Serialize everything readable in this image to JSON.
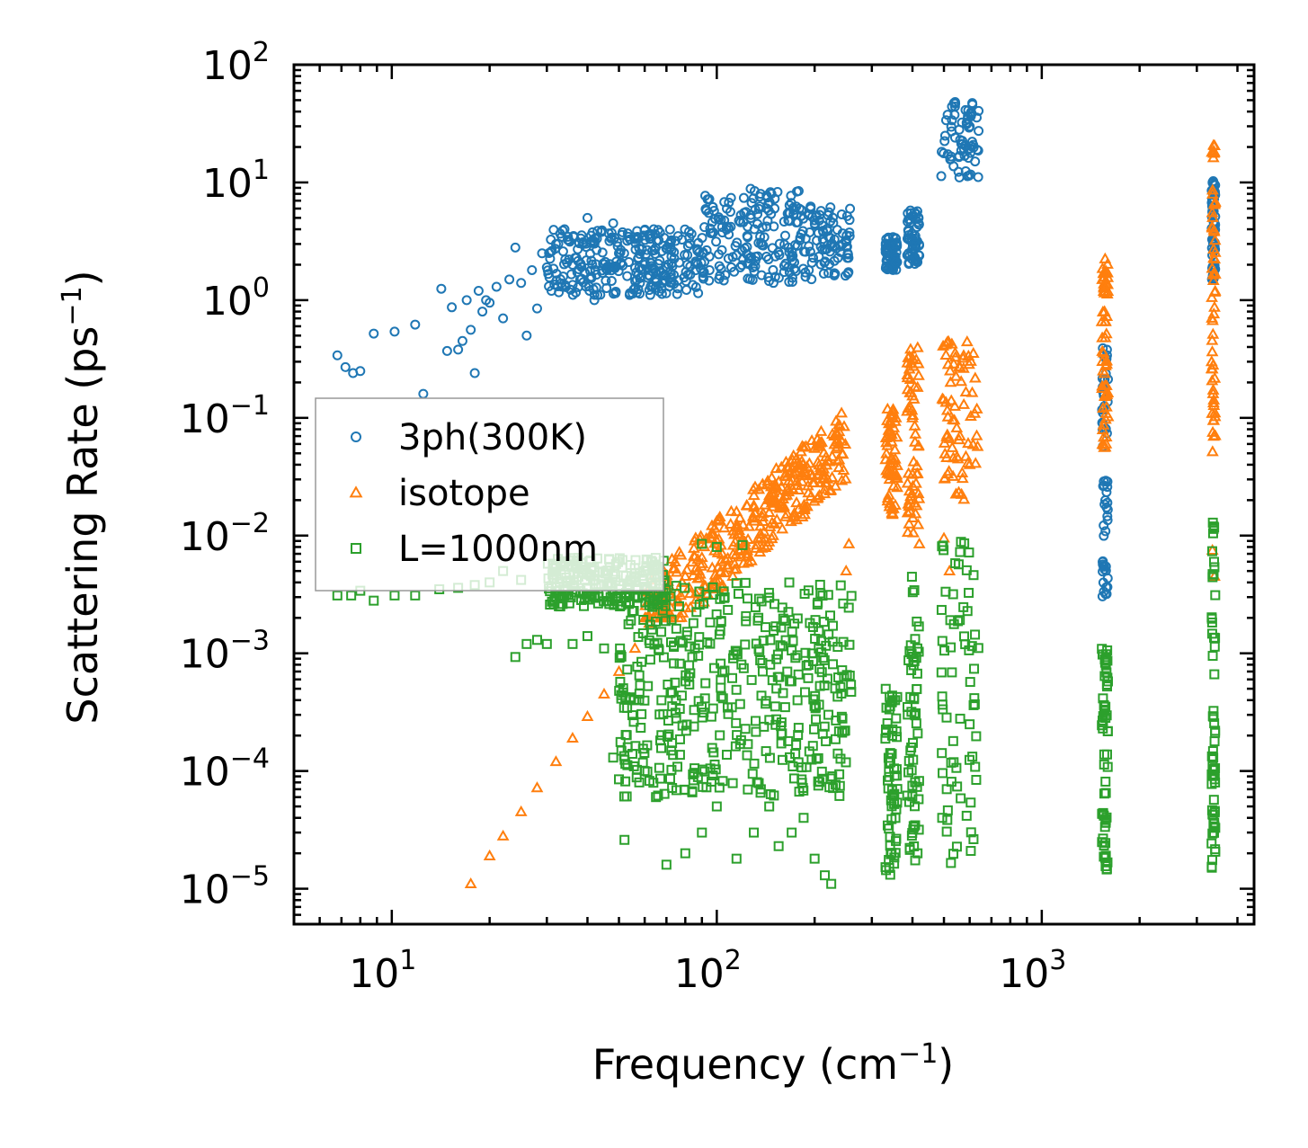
{
  "chart_data": {
    "type": "scatter",
    "title": "",
    "xlabel": "Frequency (cm",
    "xlabel_sup": "−1",
    "xlabel_end": ")",
    "ylabel": "Scattering Rate (ps",
    "ylabel_sup": "−1",
    "ylabel_end": ")",
    "xscale": "log",
    "yscale": "log",
    "xlim": [
      5,
      4500
    ],
    "ylim": [
      5e-06,
      100
    ],
    "x_ticks": [
      {
        "value": 10,
        "base": "10",
        "exp": "1"
      },
      {
        "value": 100,
        "base": "10",
        "exp": "2"
      },
      {
        "value": 1000,
        "base": "10",
        "exp": "3"
      }
    ],
    "y_ticks": [
      {
        "value": 100,
        "base": "10",
        "exp": "2"
      },
      {
        "value": 10,
        "base": "10",
        "exp": "1"
      },
      {
        "value": 1,
        "base": "10",
        "exp": "0"
      },
      {
        "value": 0.1,
        "base": "10",
        "exp": "−1"
      },
      {
        "value": 0.01,
        "base": "10",
        "exp": "−2"
      },
      {
        "value": 0.001,
        "base": "10",
        "exp": "−3"
      },
      {
        "value": 0.0001,
        "base": "10",
        "exp": "−4"
      },
      {
        "value": 1e-05,
        "base": "10",
        "exp": "−5"
      }
    ],
    "legend_position": "center-left",
    "series": [
      {
        "name": "3ph(300K)",
        "marker": "circle",
        "color": "#1f77b4",
        "points": [
          [
            6.8,
            0.34
          ],
          [
            7.2,
            0.27
          ],
          [
            7.6,
            0.24
          ],
          [
            8.0,
            0.25
          ],
          [
            8.8,
            0.52
          ],
          [
            10.2,
            0.54
          ],
          [
            11.8,
            0.62
          ],
          [
            12.5,
            0.16
          ],
          [
            14.2,
            1.25
          ],
          [
            14.8,
            0.37
          ],
          [
            15.3,
            0.87
          ],
          [
            16.0,
            0.38
          ],
          [
            16.5,
            0.45
          ],
          [
            17.0,
            1.0
          ],
          [
            17.5,
            0.56
          ],
          [
            18.0,
            0.24
          ],
          [
            18.5,
            1.2
          ],
          [
            19.0,
            0.8
          ],
          [
            19.5,
            1.0
          ],
          [
            20.0,
            0.95
          ],
          [
            21.0,
            1.3
          ],
          [
            22.0,
            0.7
          ],
          [
            23.0,
            1.5
          ],
          [
            24.0,
            2.8
          ],
          [
            25.0,
            1.4
          ],
          [
            26.0,
            0.5
          ],
          [
            27.0,
            1.8
          ],
          [
            28.0,
            0.85
          ],
          [
            29.0,
            2.5
          ],
          [
            30.0,
            1.9
          ],
          [
            31.0,
            1.2
          ],
          [
            32.0,
            3.0
          ],
          [
            34.0,
            4.0
          ],
          [
            36.0,
            2.0
          ],
          [
            38.0,
            1.5
          ],
          [
            40.0,
            5.0
          ],
          [
            42.0,
            1.0
          ],
          [
            44.0,
            3.8
          ],
          [
            46.0,
            1.8
          ],
          [
            48.0,
            4.5
          ],
          [
            50.0,
            2.5
          ],
          [
            53.0,
            1.6
          ],
          [
            56.0,
            3.3
          ],
          [
            60.0,
            2.0
          ],
          [
            64.0,
            4.0
          ],
          [
            68.0,
            1.4
          ],
          [
            72.0,
            2.8
          ],
          [
            76.0,
            3.5
          ]
        ],
        "bands": [
          {
            "x": [
              30,
              90
            ],
            "y": [
              1.1,
              4.0
            ]
          },
          {
            "x": [
              90,
              180
            ],
            "y": [
              1.4,
              9.0
            ]
          },
          {
            "x": [
              180,
              260
            ],
            "y": [
              1.5,
              6.5
            ]
          },
          {
            "x": [
              330,
              360
            ],
            "y": [
              1.8,
              3.5
            ]
          },
          {
            "x": [
              385,
              420
            ],
            "y": [
              2.0,
              5.8
            ]
          },
          {
            "x": [
              490,
              640
            ],
            "y": [
              11,
              55
            ]
          },
          {
            "x": [
              1530,
              1600
            ],
            "y": [
              0.003,
              0.4
            ]
          },
          {
            "x": [
              3330,
              3420
            ],
            "y": [
              1.5,
              11
            ]
          }
        ]
      },
      {
        "name": "isotope",
        "marker": "triangle",
        "color": "#ff7f0e",
        "points": [
          [
            17.5,
            1.1e-05
          ],
          [
            20.0,
            1.9e-05
          ],
          [
            22.0,
            2.8e-05
          ],
          [
            25.0,
            4.5e-05
          ],
          [
            28.0,
            7.2e-05
          ],
          [
            32.0,
            0.00012
          ],
          [
            36.0,
            0.00019
          ],
          [
            40.0,
            0.00029
          ],
          [
            45.0,
            0.00045
          ],
          [
            50.0,
            0.0007
          ],
          [
            56.0,
            0.0011
          ],
          [
            62.0,
            0.0018
          ],
          [
            70.0,
            0.0028
          ],
          [
            80.0,
            0.0045
          ],
          [
            90.0,
            0.0065
          ],
          [
            100.0,
            0.009
          ],
          [
            115.0,
            0.012
          ],
          [
            130.0,
            0.018
          ],
          [
            150.0,
            0.025
          ],
          [
            175.0,
            0.035
          ],
          [
            200.0,
            0.055
          ],
          [
            230.0,
            0.07
          ],
          [
            250.0,
            0.005
          ],
          [
            255.0,
            0.0085
          ],
          [
            340.0,
            0.03
          ],
          [
            400.0,
            0.1
          ],
          [
            420.0,
            0.0085
          ],
          [
            500.0,
            0.0095
          ],
          [
            520.0,
            0.005
          ],
          [
            560.0,
            0.07
          ],
          [
            600.0,
            0.04
          ],
          [
            1560.0,
            0.8
          ],
          [
            3350.0,
            0.0075
          ],
          [
            3400.0,
            0.0045
          ]
        ],
        "bands": [
          {
            "x": [
              60,
              250
            ],
            "y": [
              0.002,
              0.11
            ]
          },
          {
            "x": [
              330,
              360
            ],
            "y": [
              0.015,
              0.12
            ]
          },
          {
            "x": [
              385,
              420
            ],
            "y": [
              0.01,
              0.4
            ]
          },
          {
            "x": [
              490,
              640
            ],
            "y": [
              0.02,
              0.5
            ]
          },
          {
            "x": [
              1530,
              1600
            ],
            "y": [
              0.05,
              2.3
            ]
          },
          {
            "x": [
              3330,
              3420
            ],
            "y": [
              0.05,
              21
            ]
          }
        ]
      },
      {
        "name": "L=1000nm",
        "marker": "square",
        "color": "#2ca02c",
        "points": [
          [
            6.8,
            0.0031
          ],
          [
            7.5,
            0.0031
          ],
          [
            8.0,
            0.0034
          ],
          [
            8.8,
            0.0028
          ],
          [
            10.2,
            0.0031
          ],
          [
            11.8,
            0.0031
          ],
          [
            14.0,
            0.0035
          ],
          [
            16.0,
            0.0036
          ],
          [
            18.0,
            0.0038
          ],
          [
            20.0,
            0.004
          ],
          [
            22.0,
            0.005
          ],
          [
            25.0,
            0.0042
          ],
          [
            24.0,
            0.00093
          ],
          [
            26.0,
            0.0012
          ],
          [
            28.0,
            0.0013
          ],
          [
            30.0,
            0.0012
          ],
          [
            33.0,
            0.0025
          ],
          [
            36.0,
            0.0012
          ],
          [
            40.0,
            0.0014
          ],
          [
            45.0,
            0.0011
          ],
          [
            48.0,
            0.00013
          ],
          [
            50.0,
            8.5e-05
          ],
          [
            52.0,
            2.6e-05
          ],
          [
            55.0,
            0.00014
          ],
          [
            60.0,
            0.0001
          ],
          [
            65.0,
            6e-05
          ],
          [
            70.0,
            1.6e-05
          ],
          [
            80.0,
            2e-05
          ],
          [
            90.0,
            3e-05
          ],
          [
            100.0,
            5e-05
          ],
          [
            115.0,
            1.8e-05
          ],
          [
            130.0,
            3e-05
          ],
          [
            145.0,
            5e-05
          ],
          [
            155.0,
            2.3e-05
          ],
          [
            170.0,
            3e-05
          ],
          [
            185.0,
            4e-05
          ],
          [
            200.0,
            1.8e-05
          ],
          [
            215.0,
            1.3e-05
          ],
          [
            225.0,
            1.1e-05
          ],
          [
            90.0,
            0.0085
          ],
          [
            100.0,
            0.008
          ],
          [
            120.0,
            0.0083
          ]
        ],
        "bands": [
          {
            "x": [
              30,
              70
            ],
            "y": [
              0.0025,
              0.0065
            ]
          },
          {
            "x": [
              50,
              260
            ],
            "y": [
              6e-05,
              0.004
            ]
          },
          {
            "x": [
              330,
              360
            ],
            "y": [
              1.3e-05,
              0.0005
            ]
          },
          {
            "x": [
              385,
              420
            ],
            "y": [
              1.7e-05,
              0.0045
            ]
          },
          {
            "x": [
              490,
              640
            ],
            "y": [
              1.6e-05,
              0.009
            ]
          },
          {
            "x": [
              1530,
              1600
            ],
            "y": [
              1.3e-05,
              0.0014
            ]
          },
          {
            "x": [
              3330,
              3420
            ],
            "y": [
              1.5e-05,
              0.013
            ]
          }
        ]
      }
    ]
  }
}
